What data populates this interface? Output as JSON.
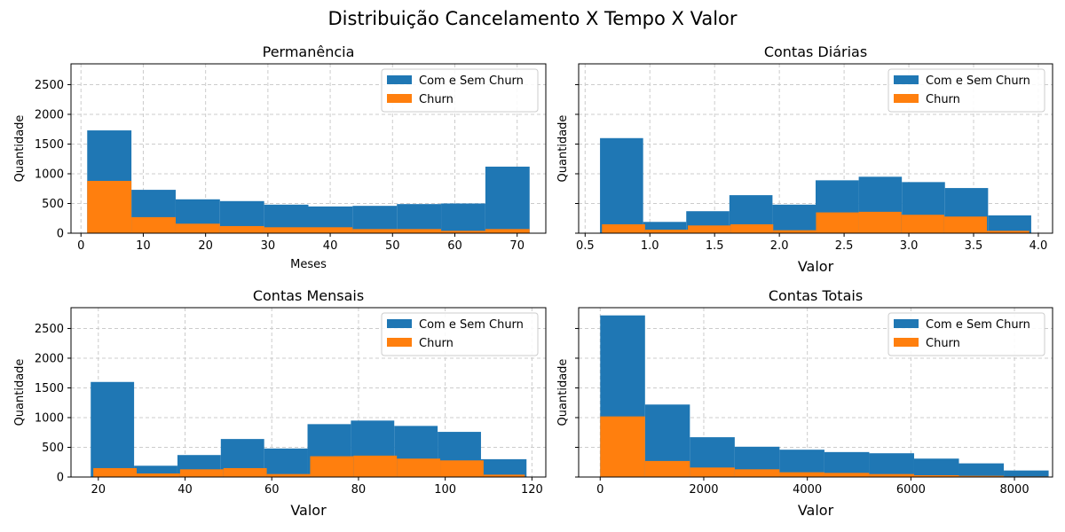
{
  "suptitle": "Distribuição Cancelamento X Tempo X Valor",
  "colors": {
    "total": "#1f77b4",
    "churn": "#ff7f0e",
    "grid": "#cccccc"
  },
  "chart_data": [
    {
      "type": "bar",
      "title": "Permanência",
      "xlabel": "Meses",
      "ylabel": "Quantidade",
      "xlim": [
        -1.6,
        74.6
      ],
      "ylim": [
        0,
        2850
      ],
      "xticks": [
        0,
        10,
        20,
        30,
        40,
        50,
        60,
        70
      ],
      "yticks": [
        0,
        500,
        1000,
        1500,
        2000,
        2500
      ],
      "grid": true,
      "legend_position": "top-right",
      "series": [
        {
          "name": "Com e Sem Churn",
          "bins": [
            [
              1.0,
              8.1
            ],
            [
              8.1,
              15.2
            ],
            [
              15.2,
              22.3
            ],
            [
              22.3,
              29.4
            ],
            [
              29.4,
              36.5
            ],
            [
              36.5,
              43.6
            ],
            [
              43.6,
              50.7
            ],
            [
              50.7,
              57.8
            ],
            [
              57.8,
              64.9
            ],
            [
              64.9,
              72.0
            ]
          ],
          "values": [
            1730,
            730,
            570,
            540,
            480,
            450,
            460,
            490,
            500,
            1120
          ]
        },
        {
          "name": "Churn",
          "bins": [
            [
              1.0,
              8.1
            ],
            [
              8.1,
              15.2
            ],
            [
              15.2,
              22.3
            ],
            [
              22.3,
              29.4
            ],
            [
              29.4,
              36.5
            ],
            [
              36.5,
              43.6
            ],
            [
              43.6,
              50.7
            ],
            [
              50.7,
              57.8
            ],
            [
              57.8,
              64.9
            ],
            [
              64.9,
              72.0
            ]
          ],
          "values": [
            880,
            270,
            160,
            120,
            100,
            100,
            70,
            70,
            40,
            70
          ]
        }
      ]
    },
    {
      "type": "bar",
      "title": "Contas Diárias",
      "xlabel": "Valor",
      "ylabel": "Quantidade",
      "xlim": [
        0.45,
        4.11
      ],
      "ylim": [
        0,
        2850
      ],
      "xticks": [
        0.5,
        1.0,
        1.5,
        2.0,
        2.5,
        3.0,
        3.5,
        4.0
      ],
      "xtick_labels": [
        "0.5",
        "1.0",
        "1.5",
        "2.0",
        "2.5",
        "3.0",
        "3.5",
        "4.0"
      ],
      "yticks": [
        0,
        500,
        1000,
        1500,
        2000,
        2500
      ],
      "grid": true,
      "legend_position": "top-right",
      "series": [
        {
          "name": "Com e Sem Churn",
          "bins": [
            [
              0.615,
              0.948
            ],
            [
              0.948,
              1.281
            ],
            [
              1.281,
              1.614
            ],
            [
              1.614,
              1.947
            ],
            [
              1.947,
              2.28
            ],
            [
              2.28,
              2.613
            ],
            [
              2.613,
              2.946
            ],
            [
              2.946,
              3.279
            ],
            [
              3.279,
              3.612
            ],
            [
              3.612,
              3.945
            ]
          ],
          "values": [
            1600,
            190,
            370,
            640,
            480,
            890,
            950,
            860,
            760,
            300
          ]
        },
        {
          "name": "Churn",
          "bins": [
            [
              0.63,
              0.963
            ],
            [
              0.963,
              1.293
            ],
            [
              1.293,
              1.623
            ],
            [
              1.623,
              1.953
            ],
            [
              1.953,
              2.283
            ],
            [
              2.283,
              2.613
            ],
            [
              2.613,
              2.943
            ],
            [
              2.943,
              3.273
            ],
            [
              3.273,
              3.603
            ],
            [
              3.603,
              3.93
            ]
          ],
          "values": [
            150,
            60,
            130,
            150,
            50,
            350,
            360,
            310,
            280,
            40
          ]
        }
      ]
    },
    {
      "type": "bar",
      "title": "Contas Mensais",
      "xlabel": "Valor",
      "ylabel": "Quantidade",
      "xlim": [
        13.7,
        123.2
      ],
      "ylim": [
        0,
        2850
      ],
      "xticks": [
        20,
        40,
        60,
        80,
        100,
        120
      ],
      "yticks": [
        0,
        500,
        1000,
        1500,
        2000,
        2500
      ],
      "grid": true,
      "legend_position": "top-right",
      "series": [
        {
          "name": "Com e Sem Churn",
          "bins": [
            [
              18.25,
              28.25
            ],
            [
              28.25,
              38.25
            ],
            [
              38.25,
              48.25
            ],
            [
              48.25,
              58.25
            ],
            [
              58.25,
              68.25
            ],
            [
              68.25,
              78.25
            ],
            [
              78.25,
              88.25
            ],
            [
              88.25,
              98.25
            ],
            [
              98.25,
              108.25
            ],
            [
              108.25,
              118.75
            ]
          ],
          "values": [
            1600,
            190,
            370,
            640,
            480,
            890,
            950,
            860,
            760,
            300
          ]
        },
        {
          "name": "Churn",
          "bins": [
            [
              18.85,
              28.85
            ],
            [
              28.85,
              38.85
            ],
            [
              38.85,
              48.85
            ],
            [
              48.85,
              58.85
            ],
            [
              58.85,
              68.85
            ],
            [
              68.85,
              78.85
            ],
            [
              78.85,
              88.85
            ],
            [
              88.85,
              98.85
            ],
            [
              98.85,
              108.85
            ],
            [
              108.85,
              118.35
            ]
          ],
          "values": [
            150,
            60,
            130,
            150,
            50,
            350,
            360,
            310,
            280,
            40
          ]
        }
      ]
    },
    {
      "type": "bar",
      "title": "Contas Totais",
      "xlabel": "Valor",
      "ylabel": "Quantidade",
      "xlim": [
        -416,
        8736
      ],
      "ylim": [
        0,
        2850
      ],
      "xticks": [
        0,
        2000,
        4000,
        6000,
        8000
      ],
      "yticks": [
        0,
        500,
        1000,
        1500,
        2000,
        2500
      ],
      "grid": true,
      "legend_position": "top-right",
      "series": [
        {
          "name": "Com e Sem Churn",
          "bins": [
            [
              0,
              866
            ],
            [
              866,
              1732
            ],
            [
              1732,
              2598
            ],
            [
              2598,
              3464
            ],
            [
              3464,
              4330
            ],
            [
              4330,
              5196
            ],
            [
              5196,
              6062
            ],
            [
              6062,
              6928
            ],
            [
              6928,
              7794
            ],
            [
              7794,
              8660
            ]
          ],
          "values": [
            2720,
            1220,
            670,
            510,
            460,
            420,
            400,
            310,
            230,
            110
          ]
        },
        {
          "name": "Churn",
          "bins": [
            [
              0,
              866
            ],
            [
              866,
              1732
            ],
            [
              1732,
              2598
            ],
            [
              2598,
              3464
            ],
            [
              3464,
              4330
            ],
            [
              4330,
              5196
            ],
            [
              5196,
              6062
            ],
            [
              6062,
              6928
            ],
            [
              6928,
              7794
            ],
            [
              7794,
              8660
            ]
          ],
          "values": [
            1020,
            270,
            160,
            130,
            80,
            70,
            50,
            30,
            20,
            10
          ]
        }
      ]
    }
  ]
}
